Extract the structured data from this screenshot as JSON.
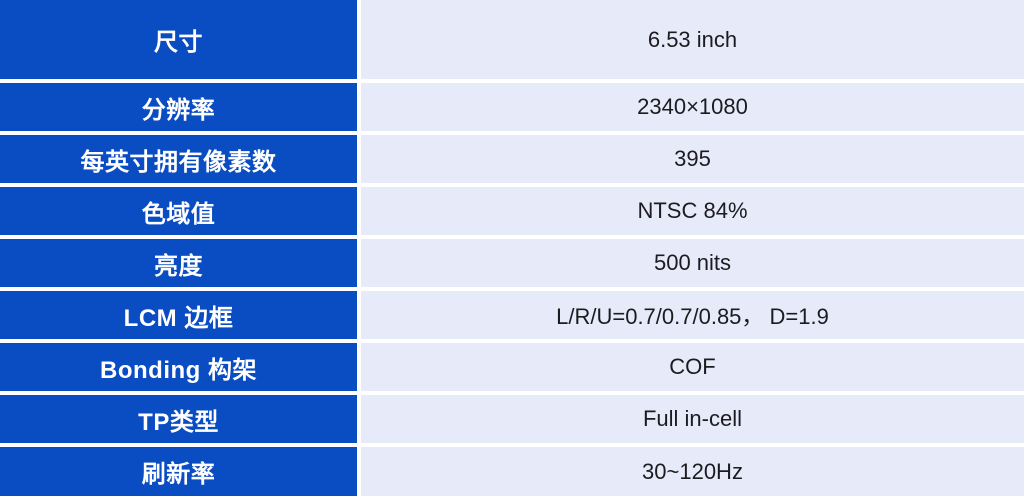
{
  "table": {
    "colors": {
      "label_background": "#0a4cc2",
      "label_text": "#ffffff",
      "value_background": "#e7eaf9",
      "value_text": "#1b1b20",
      "divider": "#ffffff"
    },
    "rows": [
      {
        "label": "尺寸",
        "value": "6.53 inch"
      },
      {
        "label": "分辨率",
        "value": "2340×1080"
      },
      {
        "label": "每英寸拥有像素数",
        "value": "395"
      },
      {
        "label": "色域值",
        "value": "NTSC 84%"
      },
      {
        "label": "亮度",
        "value": "500 nits"
      },
      {
        "label": "LCM 边框",
        "value": "L/R/U=0.7/0.7/0.85， D=1.9"
      },
      {
        "label": "Bonding 构架",
        "value": "COF"
      },
      {
        "label": "TP类型",
        "value": "Full in-cell"
      },
      {
        "label": "刷新率",
        "value": "30~120Hz"
      }
    ]
  }
}
